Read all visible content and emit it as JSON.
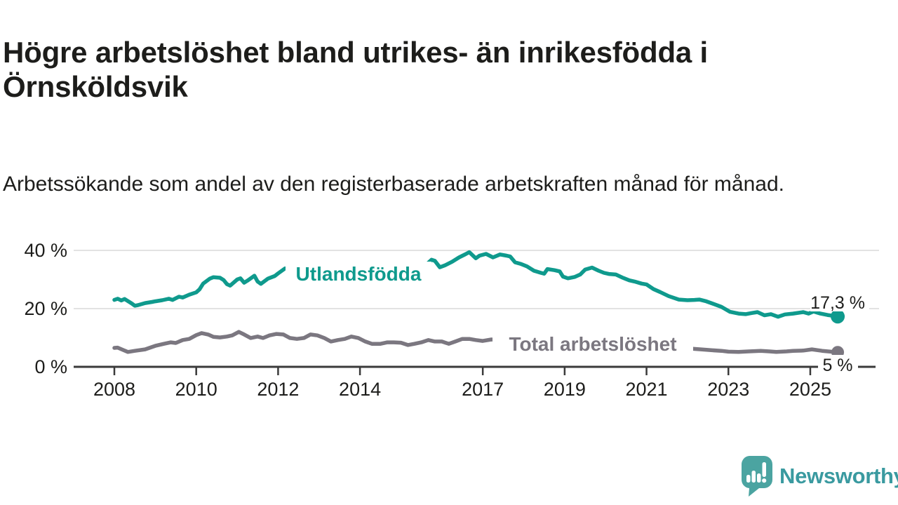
{
  "header": {
    "title": "Högre arbetslöshet bland utrikes- än inrikesfödda i Örnsköldsvik",
    "subtitle": "Arbetssökande som andel av den registerbaserade arbetskraften månad för månad."
  },
  "footer": {
    "brand": "Newsworthy"
  },
  "chart_data": {
    "type": "line",
    "title": "Högre arbetslöshet bland utrikes- än inrikesfödda i Örnsköldsvik",
    "xlabel": "",
    "ylabel": "",
    "x_axis": {
      "ticks": [
        2008,
        2010,
        2012,
        2014,
        2017,
        2019,
        2021,
        2023,
        2025
      ],
      "range": [
        2007.0,
        2026.5
      ]
    },
    "y_axis": {
      "ticks": [
        {
          "value": 0,
          "label": "0 %"
        },
        {
          "value": 20,
          "label": "20 %"
        },
        {
          "value": 40,
          "label": "40 %"
        }
      ],
      "range": [
        0,
        43
      ],
      "gridlines": [
        20,
        40
      ],
      "grid": true
    },
    "legend_position": "inline-labels",
    "colors": {
      "utlandsfodda": "#0f9a8d",
      "total": "#7b7780",
      "axis": "#3a3a3a",
      "grid": "#d9d9d9",
      "text": "#1d1d1b"
    },
    "series": [
      {
        "name": "Utlandsfödda",
        "color": "#0f9a8d",
        "end_label": "17,3 %",
        "end_value": 17.3,
        "points": [
          [
            2008.0,
            23.0
          ],
          [
            2008.08,
            23.4
          ],
          [
            2008.17,
            22.8
          ],
          [
            2008.25,
            23.3
          ],
          [
            2008.42,
            21.8
          ],
          [
            2008.5,
            21.0
          ],
          [
            2008.58,
            21.2
          ],
          [
            2008.75,
            21.9
          ],
          [
            2008.92,
            22.3
          ],
          [
            2009.0,
            22.5
          ],
          [
            2009.17,
            22.9
          ],
          [
            2009.33,
            23.4
          ],
          [
            2009.42,
            23.0
          ],
          [
            2009.58,
            24.1
          ],
          [
            2009.67,
            23.8
          ],
          [
            2009.83,
            24.8
          ],
          [
            2010.0,
            25.6
          ],
          [
            2010.08,
            26.6
          ],
          [
            2010.17,
            28.6
          ],
          [
            2010.33,
            30.3
          ],
          [
            2010.42,
            30.8
          ],
          [
            2010.58,
            30.6
          ],
          [
            2010.67,
            29.8
          ],
          [
            2010.75,
            28.4
          ],
          [
            2010.83,
            27.9
          ],
          [
            2011.0,
            30.0
          ],
          [
            2011.08,
            30.4
          ],
          [
            2011.17,
            28.9
          ],
          [
            2011.25,
            29.6
          ],
          [
            2011.42,
            31.3
          ],
          [
            2011.5,
            29.3
          ],
          [
            2011.58,
            28.5
          ],
          [
            2011.75,
            30.3
          ],
          [
            2011.92,
            31.2
          ],
          [
            2012.0,
            32.1
          ],
          [
            2012.17,
            33.8
          ],
          [
            2012.25,
            33.9
          ],
          [
            2012.42,
            33.5
          ],
          [
            2012.58,
            34.0
          ],
          [
            2012.75,
            34.4
          ],
          [
            2013.0,
            34.0
          ],
          [
            2013.25,
            33.8
          ],
          [
            2013.42,
            34.3
          ],
          [
            2013.58,
            34.7
          ],
          [
            2013.83,
            34.3
          ],
          [
            2014.0,
            34.1
          ],
          [
            2014.25,
            34.5
          ],
          [
            2014.5,
            34.9
          ],
          [
            2014.75,
            34.6
          ],
          [
            2015.0,
            35.0
          ],
          [
            2015.25,
            35.2
          ],
          [
            2015.42,
            34.8
          ],
          [
            2015.58,
            34.6
          ],
          [
            2015.75,
            36.8
          ],
          [
            2015.83,
            36.4
          ],
          [
            2015.95,
            34.2
          ],
          [
            2016.08,
            34.9
          ],
          [
            2016.25,
            36.1
          ],
          [
            2016.42,
            37.6
          ],
          [
            2016.58,
            38.7
          ],
          [
            2016.67,
            39.4
          ],
          [
            2016.83,
            37.3
          ],
          [
            2016.92,
            38.2
          ],
          [
            2017.08,
            38.8
          ],
          [
            2017.25,
            37.6
          ],
          [
            2017.42,
            38.6
          ],
          [
            2017.58,
            38.2
          ],
          [
            2017.67,
            37.9
          ],
          [
            2017.79,
            35.9
          ],
          [
            2017.92,
            35.4
          ],
          [
            2018.08,
            34.5
          ],
          [
            2018.25,
            33.0
          ],
          [
            2018.42,
            32.3
          ],
          [
            2018.5,
            32.0
          ],
          [
            2018.58,
            33.6
          ],
          [
            2018.75,
            33.2
          ],
          [
            2018.88,
            32.8
          ],
          [
            2018.96,
            31.0
          ],
          [
            2019.08,
            30.4
          ],
          [
            2019.25,
            30.9
          ],
          [
            2019.38,
            31.7
          ],
          [
            2019.5,
            33.4
          ],
          [
            2019.67,
            34.1
          ],
          [
            2019.83,
            33.0
          ],
          [
            2019.96,
            32.3
          ],
          [
            2020.08,
            31.9
          ],
          [
            2020.25,
            31.7
          ],
          [
            2020.42,
            30.6
          ],
          [
            2020.58,
            29.7
          ],
          [
            2020.71,
            29.3
          ],
          [
            2020.88,
            28.6
          ],
          [
            2021.0,
            28.3
          ],
          [
            2021.17,
            26.7
          ],
          [
            2021.33,
            25.7
          ],
          [
            2021.54,
            24.3
          ],
          [
            2021.79,
            23.1
          ],
          [
            2022.0,
            22.9
          ],
          [
            2022.17,
            23.0
          ],
          [
            2022.29,
            23.1
          ],
          [
            2022.46,
            22.5
          ],
          [
            2022.58,
            21.9
          ],
          [
            2022.83,
            20.6
          ],
          [
            2023.04,
            18.9
          ],
          [
            2023.25,
            18.3
          ],
          [
            2023.42,
            18.1
          ],
          [
            2023.58,
            18.5
          ],
          [
            2023.71,
            18.8
          ],
          [
            2023.88,
            17.7
          ],
          [
            2024.04,
            18.1
          ],
          [
            2024.21,
            17.2
          ],
          [
            2024.38,
            18.0
          ],
          [
            2024.58,
            18.3
          ],
          [
            2024.83,
            18.8
          ],
          [
            2024.96,
            18.3
          ],
          [
            2025.08,
            19.0
          ],
          [
            2025.25,
            18.3
          ],
          [
            2025.42,
            17.8
          ],
          [
            2025.67,
            17.3
          ]
        ]
      },
      {
        "name": "Total arbetslöshet",
        "color": "#7b7780",
        "end_label": "5 %",
        "end_value": 5.0,
        "points": [
          [
            2008.0,
            6.5
          ],
          [
            2008.08,
            6.6
          ],
          [
            2008.21,
            5.8
          ],
          [
            2008.33,
            5.1
          ],
          [
            2008.5,
            5.5
          ],
          [
            2008.75,
            6.0
          ],
          [
            2009.0,
            7.2
          ],
          [
            2009.21,
            7.9
          ],
          [
            2009.38,
            8.4
          ],
          [
            2009.5,
            8.2
          ],
          [
            2009.67,
            9.2
          ],
          [
            2009.83,
            9.6
          ],
          [
            2010.0,
            10.9
          ],
          [
            2010.13,
            11.6
          ],
          [
            2010.29,
            11.1
          ],
          [
            2010.42,
            10.3
          ],
          [
            2010.58,
            10.1
          ],
          [
            2010.75,
            10.4
          ],
          [
            2010.88,
            10.8
          ],
          [
            2011.04,
            12.0
          ],
          [
            2011.17,
            11.1
          ],
          [
            2011.33,
            9.9
          ],
          [
            2011.5,
            10.4
          ],
          [
            2011.63,
            9.9
          ],
          [
            2011.79,
            10.8
          ],
          [
            2011.96,
            11.3
          ],
          [
            2012.13,
            11.1
          ],
          [
            2012.29,
            9.9
          ],
          [
            2012.46,
            9.6
          ],
          [
            2012.63,
            9.9
          ],
          [
            2012.79,
            11.1
          ],
          [
            2012.96,
            10.8
          ],
          [
            2013.13,
            9.9
          ],
          [
            2013.29,
            8.7
          ],
          [
            2013.46,
            9.2
          ],
          [
            2013.63,
            9.6
          ],
          [
            2013.79,
            10.4
          ],
          [
            2013.96,
            9.9
          ],
          [
            2014.13,
            8.7
          ],
          [
            2014.29,
            7.9
          ],
          [
            2014.5,
            7.9
          ],
          [
            2014.67,
            8.4
          ],
          [
            2014.83,
            8.4
          ],
          [
            2015.0,
            8.3
          ],
          [
            2015.17,
            7.5
          ],
          [
            2015.33,
            7.9
          ],
          [
            2015.5,
            8.4
          ],
          [
            2015.67,
            9.2
          ],
          [
            2015.83,
            8.7
          ],
          [
            2016.0,
            8.7
          ],
          [
            2016.17,
            7.9
          ],
          [
            2016.33,
            8.7
          ],
          [
            2016.5,
            9.6
          ],
          [
            2016.67,
            9.6
          ],
          [
            2016.83,
            9.2
          ],
          [
            2017.0,
            8.9
          ],
          [
            2017.21,
            9.4
          ],
          [
            2017.42,
            9.2
          ],
          [
            2017.63,
            8.9
          ],
          [
            2017.83,
            8.6
          ],
          [
            2018.0,
            8.4
          ],
          [
            2018.33,
            8.0
          ],
          [
            2018.67,
            7.8
          ],
          [
            2019.0,
            7.6
          ],
          [
            2019.33,
            7.4
          ],
          [
            2019.67,
            7.3
          ],
          [
            2019.92,
            7.5
          ],
          [
            2020.25,
            8.2
          ],
          [
            2020.5,
            8.6
          ],
          [
            2020.83,
            8.4
          ],
          [
            2021.08,
            8.0
          ],
          [
            2021.42,
            7.4
          ],
          [
            2021.67,
            6.9
          ],
          [
            2021.92,
            6.5
          ],
          [
            2022.04,
            6.3
          ],
          [
            2022.33,
            6.0
          ],
          [
            2022.58,
            5.7
          ],
          [
            2022.83,
            5.5
          ],
          [
            2023.0,
            5.2
          ],
          [
            2023.25,
            5.1
          ],
          [
            2023.5,
            5.3
          ],
          [
            2023.79,
            5.5
          ],
          [
            2024.0,
            5.3
          ],
          [
            2024.17,
            5.1
          ],
          [
            2024.42,
            5.3
          ],
          [
            2024.58,
            5.5
          ],
          [
            2024.83,
            5.6
          ],
          [
            2025.04,
            6.0
          ],
          [
            2025.29,
            5.5
          ],
          [
            2025.67,
            5.0
          ]
        ]
      }
    ]
  }
}
